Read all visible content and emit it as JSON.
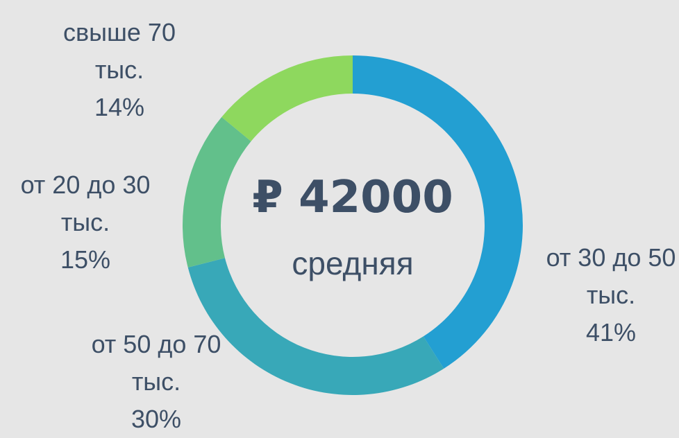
{
  "chart_data": {
    "type": "donut",
    "center_value": "₽ 42000",
    "center_label": "средняя",
    "categories": [
      "от 30 до 50 тыс.",
      "от 50 до 70 тыс.",
      "от 20 до 30 тыс.",
      "свыше 70 тыс."
    ],
    "values": [
      41,
      30,
      15,
      14
    ],
    "value_labels": [
      "41%",
      "30%",
      "15%",
      "14%"
    ],
    "colors": [
      "#239fd2",
      "#38a8b8",
      "#62c08b",
      "#8ed85e"
    ]
  }
}
